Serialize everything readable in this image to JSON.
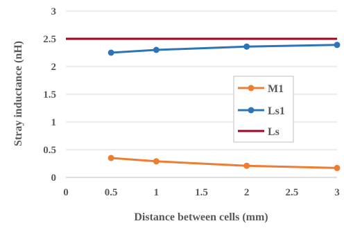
{
  "chart_data": {
    "type": "line",
    "xlabel": "Distance between cells (mm)",
    "ylabel": "Stray inductance (nH)",
    "xlim": [
      0,
      3
    ],
    "ylim": [
      0,
      3
    ],
    "x_ticks": [
      "0",
      "0.5",
      "1",
      "1.5",
      "2",
      "2.5",
      "3"
    ],
    "y_ticks": [
      "0",
      "0.5",
      "1",
      "1.5",
      "2",
      "2.5",
      "3"
    ],
    "grid": "horizontal",
    "legend_position": "center-right",
    "series": [
      {
        "name": "M1",
        "color": "#ED7D31",
        "markers": true,
        "x": [
          0.5,
          1,
          2,
          3
        ],
        "y": [
          0.35,
          0.29,
          0.21,
          0.17
        ]
      },
      {
        "name": "Ls1",
        "color": "#2E75B6",
        "markers": true,
        "x": [
          0.5,
          1,
          2,
          3
        ],
        "y": [
          2.25,
          2.3,
          2.36,
          2.39
        ]
      },
      {
        "name": "Ls",
        "color": "#A50021",
        "markers": false,
        "x": [
          0,
          3
        ],
        "y": [
          2.5,
          2.5
        ]
      }
    ]
  }
}
